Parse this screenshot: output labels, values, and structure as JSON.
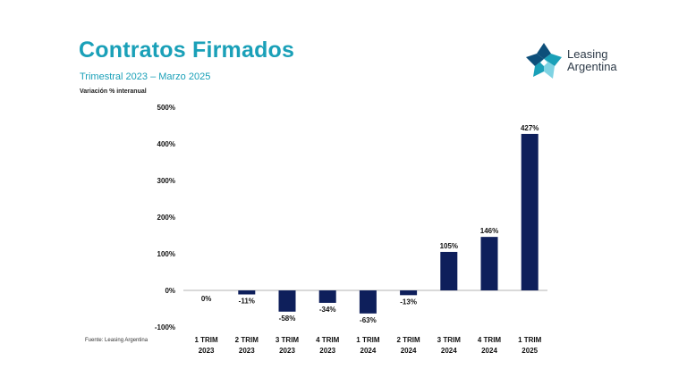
{
  "header": {
    "title": "Contratos Firmados",
    "subtitle": "Trimestral 2023 – Marzo 2025",
    "ylabel": "Variación % interanual",
    "source": "Fuente: Leasing Argentina"
  },
  "logo": {
    "line1": "Leasing",
    "line2": "Argentina",
    "icon": "leasing-argentina-logo-icon"
  },
  "colors": {
    "title": "#1aa0b8",
    "bar": "#0e1f5b",
    "logo_dark": "#0d4f7a",
    "logo_mid": "#1aa0b8",
    "logo_light": "#7fd3e3"
  },
  "chart_data": {
    "type": "bar",
    "categories": [
      [
        "1 TRIM",
        "2023"
      ],
      [
        "2 TRIM",
        "2023"
      ],
      [
        "3 TRIM",
        "2023"
      ],
      [
        "4 TRIM",
        "2023"
      ],
      [
        "1 TRIM",
        "2024"
      ],
      [
        "2 TRIM",
        "2024"
      ],
      [
        "3 TRIM",
        "2024"
      ],
      [
        "4 TRIM",
        "2024"
      ],
      [
        "1 TRIM",
        "2025"
      ]
    ],
    "values": [
      0,
      -11,
      -58,
      -34,
      -63,
      -13,
      105,
      146,
      427
    ],
    "value_labels": [
      "0%",
      "-11%",
      "-58%",
      "-34%",
      "-63%",
      "-13%",
      "105%",
      "146%",
      "427%"
    ],
    "yticks": [
      -100,
      0,
      100,
      200,
      300,
      400,
      500
    ],
    "ytick_labels": [
      "-100%",
      "0%",
      "100%",
      "200%",
      "300%",
      "400%",
      "500%"
    ],
    "ylim": [
      -100,
      500
    ],
    "title": "Contratos Firmados",
    "ylabel": "Variación % interanual",
    "grid": false,
    "legend": "none"
  }
}
